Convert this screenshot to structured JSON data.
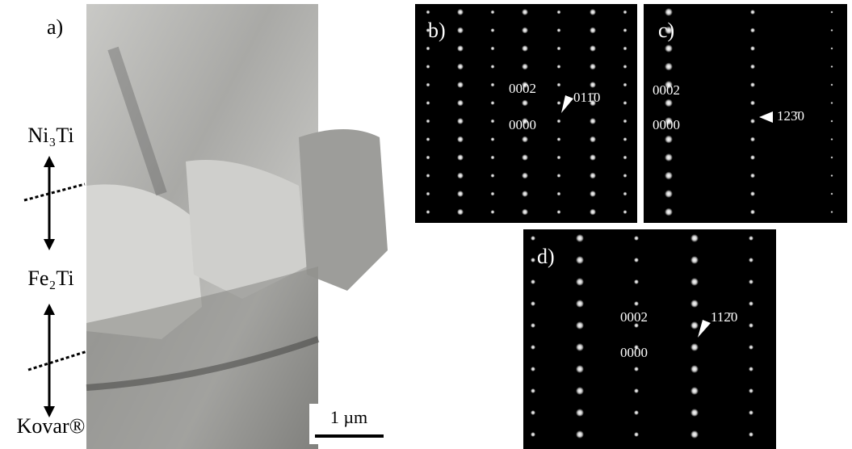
{
  "panel_a": {
    "label": "a)",
    "phases": [
      "Ni₃Ti",
      "Fe₂Ti",
      "Kovar®"
    ],
    "scale_bar": "1 µm"
  },
  "panel_b": {
    "label": "b)",
    "spots": [
      "0002",
      "0000"
    ],
    "pointer": "011̄0"
  },
  "panel_c": {
    "label": "c)",
    "spots": [
      "0002",
      "0000"
    ],
    "pointer": "123̄0"
  },
  "panel_d": {
    "label": "d)",
    "spots": [
      "0002",
      "0000"
    ],
    "pointer": "112̄0"
  }
}
